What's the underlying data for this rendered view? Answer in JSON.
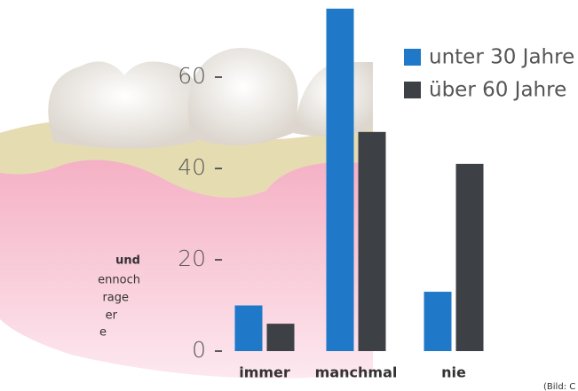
{
  "chart_data": {
    "type": "bar",
    "categories": [
      "immer",
      "manchmal",
      "nie"
    ],
    "series": [
      {
        "name": "unter 30 Jahre",
        "color": "#1f78c8",
        "values": [
          10,
          75,
          13
        ]
      },
      {
        "name": "über 60 Jahre",
        "color": "#3d4146",
        "values": [
          6,
          48,
          41
        ]
      }
    ],
    "ylim": [
      0,
      76
    ],
    "yticks": [
      0,
      20,
      40,
      60
    ],
    "side_text": [
      "und",
      "ennoch",
      "rage",
      "er",
      "e"
    ],
    "credit": "(Bild: C"
  }
}
